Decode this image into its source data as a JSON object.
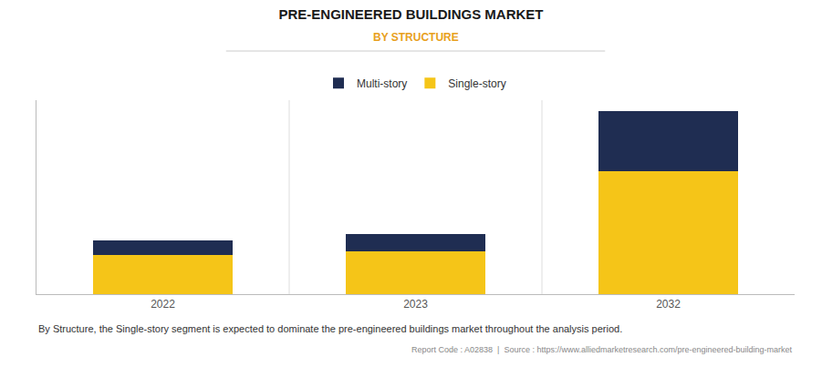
{
  "chart_data": {
    "type": "bar",
    "title": "PRE-ENGINEERED BUILDINGS MARKET",
    "subtitle": "BY STRUCTURE",
    "annotations": [
      "By Structure, the Single-story segment is expected to dominate the pre-engineered buildings market throughout the analysis period.",
      "Report Code : A02838  |  Source : https://www.alliedmarketresearch.com/pre-engineered-building-market"
    ],
    "categories": [
      "2022",
      "2023",
      "2032"
    ],
    "series": [
      {
        "name": "Single-story",
        "color": "#F5C518",
        "values": [
          18,
          20,
          57
        ]
      },
      {
        "name": "Multi-story",
        "color": "#1F2D52",
        "values": [
          7,
          8,
          28
        ]
      }
    ],
    "stacked": true,
    "ylim": [
      0,
      90
    ],
    "tick_labels": "x",
    "grid": false,
    "legend": "top"
  }
}
